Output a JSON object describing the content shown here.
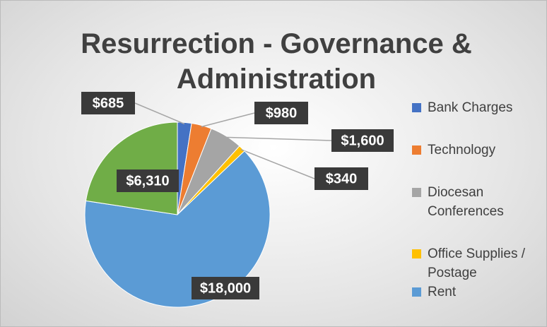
{
  "chart_data": {
    "type": "pie",
    "title": "Resurrection - Governance & Administration",
    "categories": [
      "Bank Charges",
      "Technology",
      "Diocesan Conferences",
      "Office Supplies / Postage",
      "Rent",
      null
    ],
    "values": [
      685,
      980,
      1600,
      340,
      18000,
      6310
    ],
    "value_labels": [
      "$685",
      "$980",
      "$1,600",
      "$340",
      "$18,000",
      "$6,310"
    ],
    "colors": [
      "#4472c4",
      "#ed7d31",
      "#a5a5a5",
      "#ffc000",
      "#5b9bd5",
      "#70ad47"
    ],
    "legend": "right"
  }
}
